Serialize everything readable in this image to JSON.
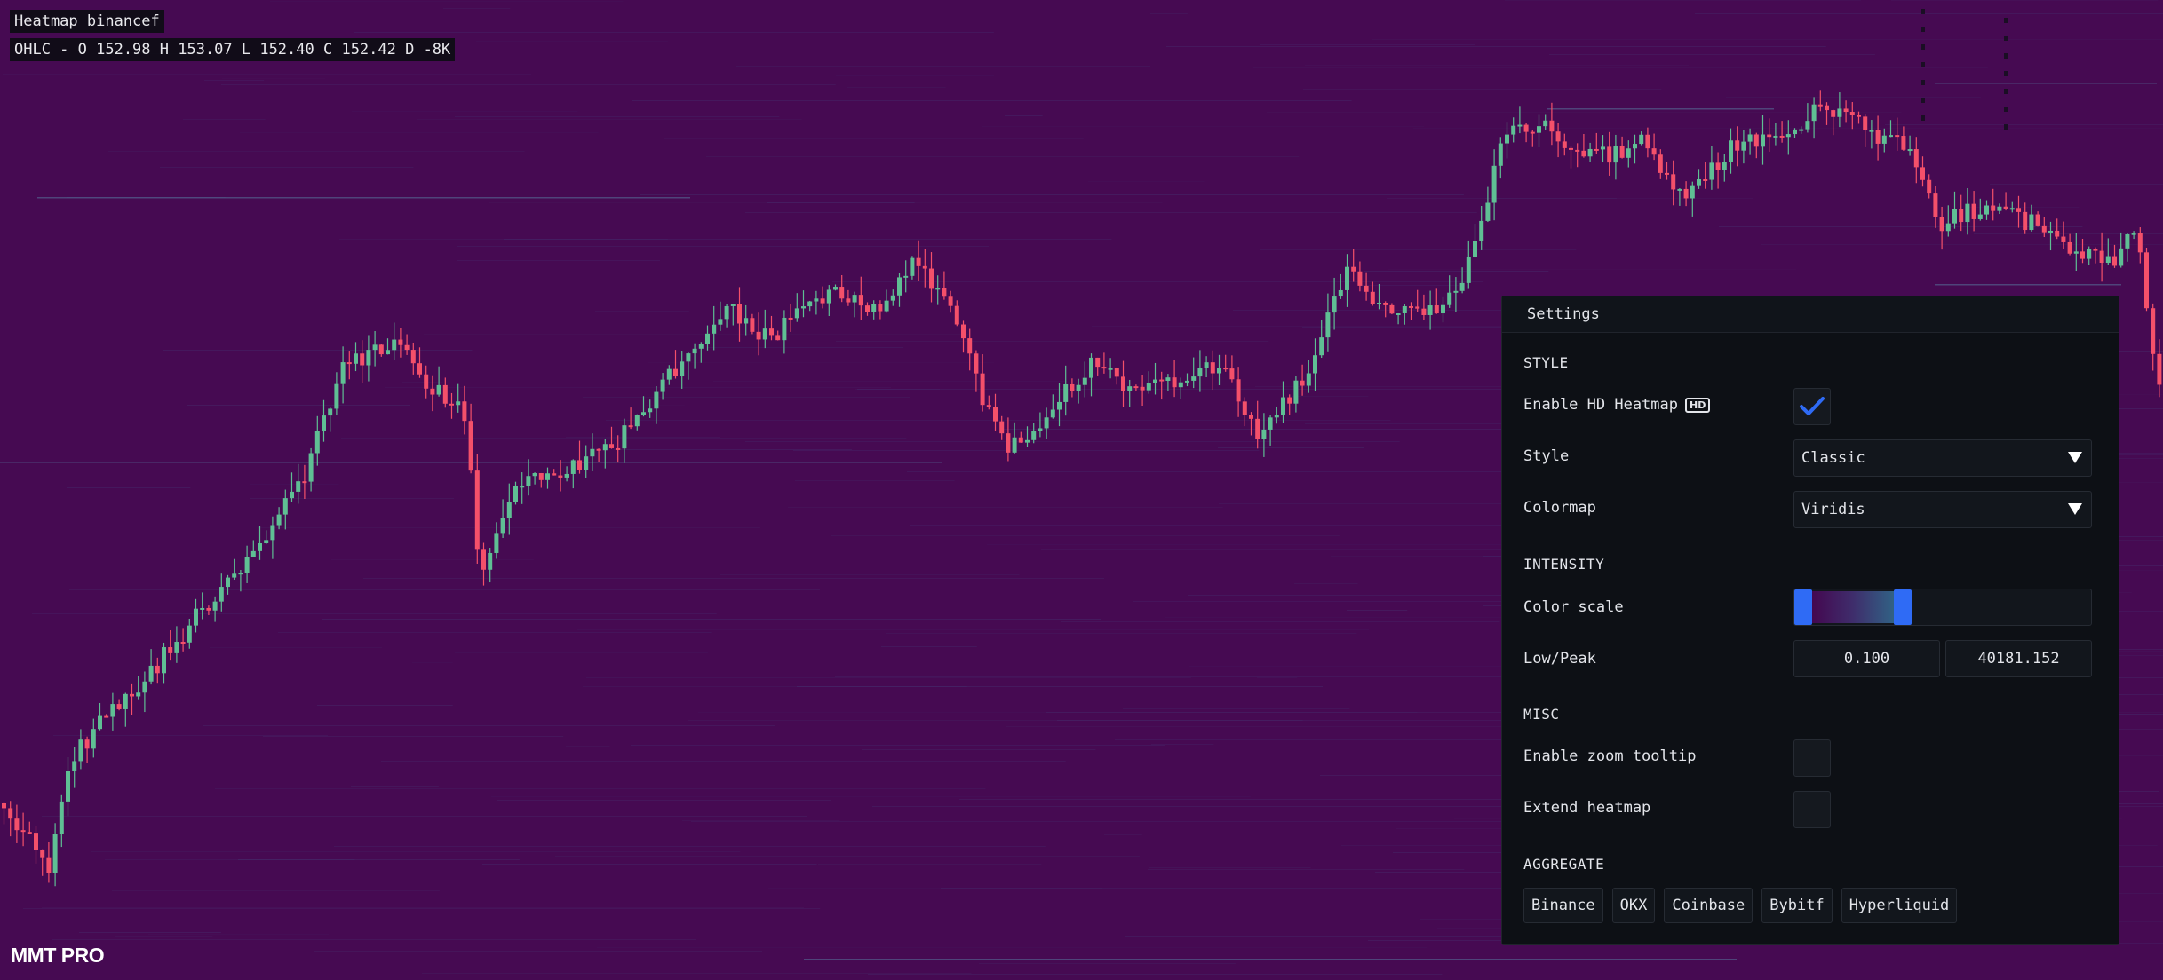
{
  "chart": {
    "title": "Heatmap binancef",
    "ohlc": "OHLC - O 152.98 H 153.07 L 152.40 C 152.42 D -8K",
    "brand": "MMT PRO",
    "bg_color": "#460a52",
    "up_color": "#5fbf94",
    "down_color": "#f4506a"
  },
  "settings": {
    "title": "Settings",
    "style_section": "STYLE",
    "hd_label": "Enable HD Heatmap",
    "hd_badge": "HD",
    "hd_enabled": true,
    "style_label": "Style",
    "style_value": "Classic",
    "colormap_label": "Colormap",
    "colormap_value": "Viridis",
    "intensity_section": "INTENSITY",
    "color_scale_label": "Color scale",
    "low_peak_label": "Low/Peak",
    "low_value": "0.100",
    "peak_value": "40181.152",
    "misc_section": "MISC",
    "zoom_tooltip_label": "Enable zoom tooltip",
    "zoom_tooltip_enabled": false,
    "extend_label": "Extend heatmap",
    "extend_enabled": false,
    "aggregate_section": "AGGREGATE",
    "exchanges": [
      "Binance",
      "OKX",
      "Coinbase",
      "Bybitf",
      "Hyperliquid"
    ],
    "accent_color": "#2f6bf5"
  }
}
